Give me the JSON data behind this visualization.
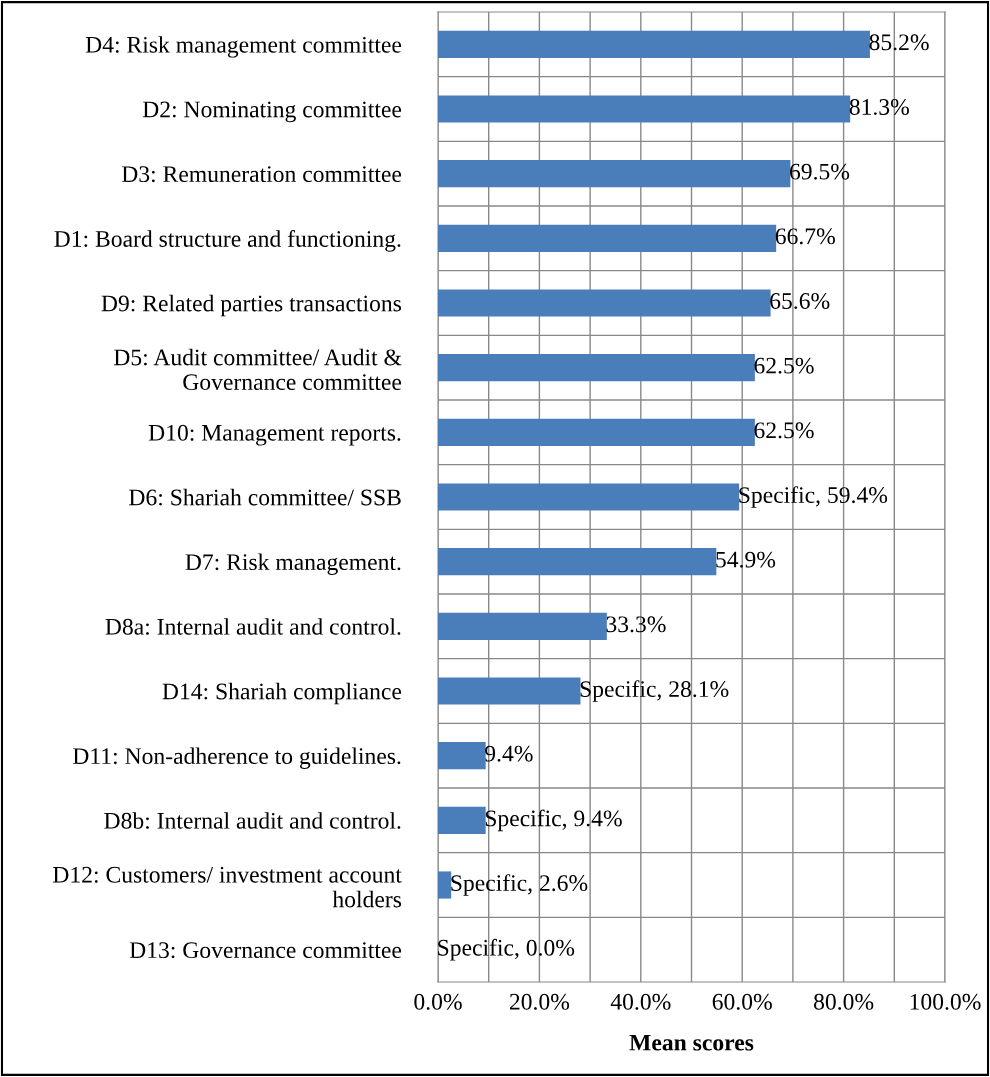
{
  "chart_data": {
    "type": "bar",
    "orientation": "horizontal",
    "xlabel": "Mean scores",
    "categories": [
      "D4: Risk management committee",
      "D2: Nominating committee",
      "D3: Remuneration committee",
      "D1: Board structure and functioning.",
      "D9: Related parties transactions",
      "D5: Audit committee/ Audit &\nGovernance committee",
      "D10: Management reports.",
      "D6: Shariah committee/ SSB",
      "D7: Risk management.",
      "D8a: Internal audit and control.",
      "D14: Shariah compliance",
      "D11: Non-adherence to guidelines.",
      "D8b: Internal audit and control.",
      "D12: Customers/ investment account\nholders",
      "D13: Governance committee"
    ],
    "values": [
      85.2,
      81.3,
      69.5,
      66.7,
      65.6,
      62.5,
      62.5,
      59.4,
      54.9,
      33.3,
      28.1,
      9.4,
      9.4,
      2.6,
      0.0
    ],
    "value_labels": [
      "85.2%",
      "81.3%",
      "69.5%",
      "66.7%",
      "65.6%",
      "62.5%",
      "62.5%",
      "Specific, 59.4%",
      "54.9%",
      "33.3%",
      "Specific, 28.1%",
      "9.4%",
      "Specific, 9.4%",
      "Specific, 2.6%",
      "Specific, 0.0%"
    ],
    "color": "#4a7ebb",
    "xlim": [
      0,
      100
    ],
    "xticks": [
      {
        "value": 0,
        "label": "0.0%"
      },
      {
        "value": 10,
        "label": null
      },
      {
        "value": 20,
        "label": "20.0%"
      },
      {
        "value": 30,
        "label": null
      },
      {
        "value": 40,
        "label": "40.0%"
      },
      {
        "value": 50,
        "label": null
      },
      {
        "value": 60,
        "label": "60.0%"
      },
      {
        "value": 70,
        "label": null
      },
      {
        "value": 80,
        "label": "80.0%"
      },
      {
        "value": 90,
        "label": null
      },
      {
        "value": 100,
        "label": "100.0%"
      }
    ],
    "grid": true
  }
}
